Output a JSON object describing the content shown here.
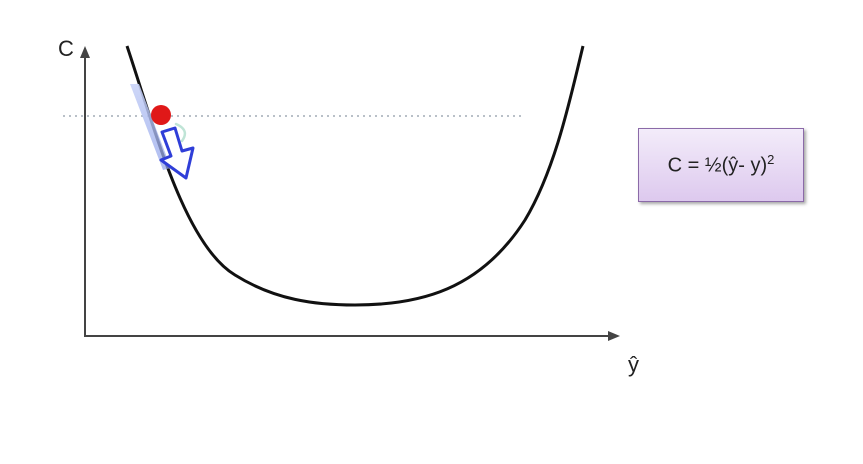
{
  "axes": {
    "y_label": "C",
    "x_label": "ŷ"
  },
  "formula": {
    "text": "C = ½(ŷ- y)",
    "exponent": "2"
  },
  "colors": {
    "curve": "#111111",
    "ball": "#e01818",
    "arrow": "#2f3ed8",
    "tangent": "#b8c4f2",
    "dotted_line": "#b9c0c8",
    "formula_box_fill": "#e6d8f3",
    "formula_box_border": "#8b6aa8"
  }
}
